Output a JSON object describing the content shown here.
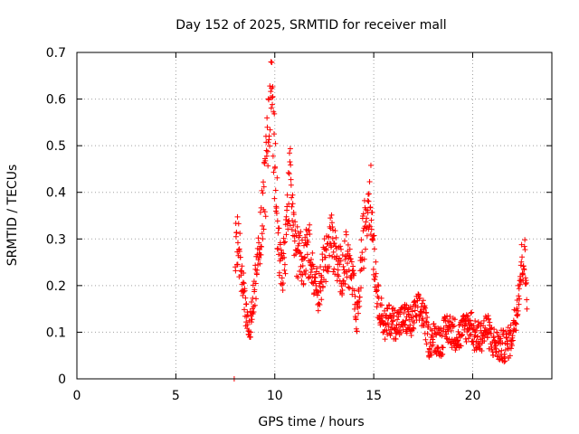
{
  "chart_data": {
    "type": "scatter",
    "title": "Day 152 of 2025, SRMTID for receiver mall",
    "xlabel": "GPS time / hours",
    "ylabel": "SRMTID / TECUs",
    "xlim": [
      0,
      24
    ],
    "ylim": [
      0,
      0.7
    ],
    "x_ticks": [
      "0",
      "5",
      "10",
      "15",
      "20"
    ],
    "y_ticks": [
      "0",
      "0.1",
      "0.2",
      "0.3",
      "0.4",
      "0.5",
      "0.6",
      "0.7"
    ],
    "grid": true,
    "marker": "plus",
    "color": "#ff0000",
    "series": [
      {
        "name": "SRMTID",
        "profile": [
          [
            7.95,
            0.0
          ],
          [
            8.0,
            0.29
          ],
          [
            8.1,
            0.31
          ],
          [
            8.2,
            0.27
          ],
          [
            8.3,
            0.24
          ],
          [
            8.4,
            0.2
          ],
          [
            8.5,
            0.15
          ],
          [
            8.6,
            0.12
          ],
          [
            8.7,
            0.11
          ],
          [
            8.8,
            0.13
          ],
          [
            8.9,
            0.17
          ],
          [
            9.0,
            0.2
          ],
          [
            9.1,
            0.23
          ],
          [
            9.2,
            0.27
          ],
          [
            9.3,
            0.34
          ],
          [
            9.4,
            0.38
          ],
          [
            9.5,
            0.41
          ],
          [
            9.6,
            0.45
          ],
          [
            9.7,
            0.55
          ],
          [
            9.8,
            0.64
          ],
          [
            9.9,
            0.55
          ],
          [
            10.0,
            0.45
          ],
          [
            10.1,
            0.37
          ],
          [
            10.2,
            0.29
          ],
          [
            10.3,
            0.25
          ],
          [
            10.4,
            0.24
          ],
          [
            10.5,
            0.26
          ],
          [
            10.6,
            0.3
          ],
          [
            10.7,
            0.4
          ],
          [
            10.8,
            0.43
          ],
          [
            10.9,
            0.34
          ],
          [
            11.0,
            0.28
          ],
          [
            11.2,
            0.27
          ],
          [
            11.4,
            0.25
          ],
          [
            11.6,
            0.27
          ],
          [
            11.8,
            0.28
          ],
          [
            12.0,
            0.22
          ],
          [
            12.2,
            0.18
          ],
          [
            12.4,
            0.22
          ],
          [
            12.6,
            0.27
          ],
          [
            12.8,
            0.3
          ],
          [
            13.0,
            0.28
          ],
          [
            13.2,
            0.24
          ],
          [
            13.4,
            0.23
          ],
          [
            13.6,
            0.26
          ],
          [
            13.8,
            0.24
          ],
          [
            14.0,
            0.19
          ],
          [
            14.1,
            0.12
          ],
          [
            14.2,
            0.14
          ],
          [
            14.4,
            0.27
          ],
          [
            14.6,
            0.34
          ],
          [
            14.8,
            0.42
          ],
          [
            14.9,
            0.35
          ],
          [
            15.0,
            0.28
          ],
          [
            15.2,
            0.17
          ],
          [
            15.4,
            0.14
          ],
          [
            15.6,
            0.11
          ],
          [
            15.8,
            0.13
          ],
          [
            16.0,
            0.12
          ],
          [
            16.3,
            0.12
          ],
          [
            16.6,
            0.13
          ],
          [
            16.9,
            0.12
          ],
          [
            17.2,
            0.15
          ],
          [
            17.5,
            0.14
          ],
          [
            17.8,
            0.08
          ],
          [
            18.1,
            0.09
          ],
          [
            18.4,
            0.08
          ],
          [
            18.7,
            0.11
          ],
          [
            19.0,
            0.1
          ],
          [
            19.3,
            0.09
          ],
          [
            19.6,
            0.11
          ],
          [
            19.9,
            0.12
          ],
          [
            20.1,
            0.09
          ],
          [
            20.4,
            0.09
          ],
          [
            20.7,
            0.11
          ],
          [
            21.0,
            0.08
          ],
          [
            21.3,
            0.07
          ],
          [
            21.6,
            0.07
          ],
          [
            21.9,
            0.08
          ],
          [
            22.2,
            0.14
          ],
          [
            22.4,
            0.22
          ],
          [
            22.5,
            0.25
          ],
          [
            22.6,
            0.27
          ],
          [
            22.7,
            0.2
          ],
          [
            22.75,
            0.17
          ]
        ]
      }
    ]
  }
}
